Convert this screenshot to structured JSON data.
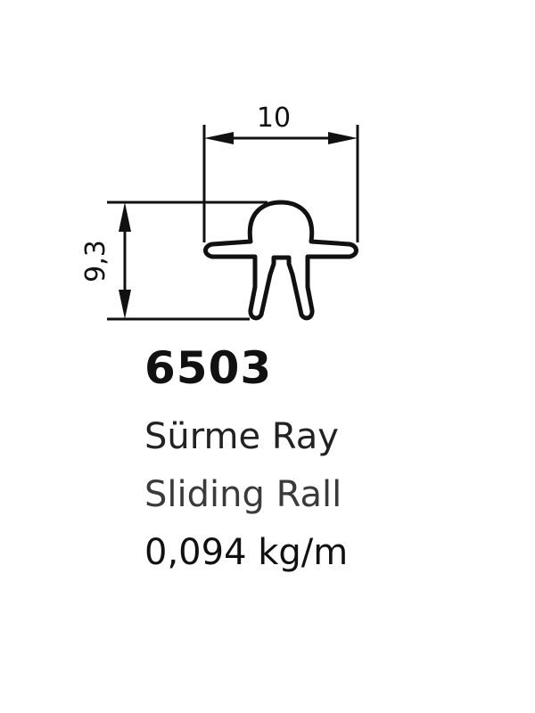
{
  "diagram": {
    "width_label": "10",
    "height_label": "9,3"
  },
  "product": {
    "code": "6503",
    "name_tr": "Sürme Ray",
    "name_en": "Sliding Rall",
    "weight": "0,094 kg/m"
  },
  "colors": {
    "ink": "#111111",
    "background": "#ffffff"
  }
}
